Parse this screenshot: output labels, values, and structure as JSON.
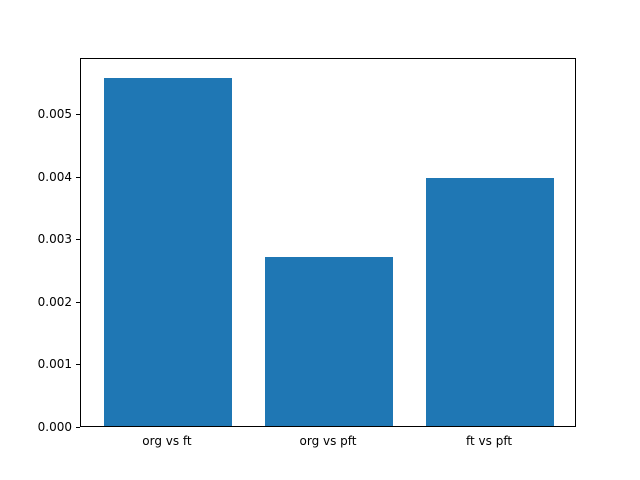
{
  "chart_data": {
    "type": "bar",
    "categories": [
      "org vs ft",
      "org vs pft",
      "ft vs pft"
    ],
    "values": [
      0.0056,
      0.00272,
      0.00398
    ],
    "title": "",
    "xlabel": "",
    "ylabel": "",
    "ylim": [
      0,
      0.0059
    ],
    "xlim": [
      -0.54,
      2.54
    ],
    "bar_width": 0.8,
    "yticks": [
      0,
      0.001,
      0.002,
      0.003,
      0.004,
      0.005
    ],
    "ytick_labels": [
      "0.000",
      "0.001",
      "0.002",
      "0.003",
      "0.004",
      "0.005"
    ],
    "bar_color": "#1f77b4",
    "axis_color": "#000000",
    "background_color": "#ffffff",
    "grid": false,
    "legend": false
  }
}
